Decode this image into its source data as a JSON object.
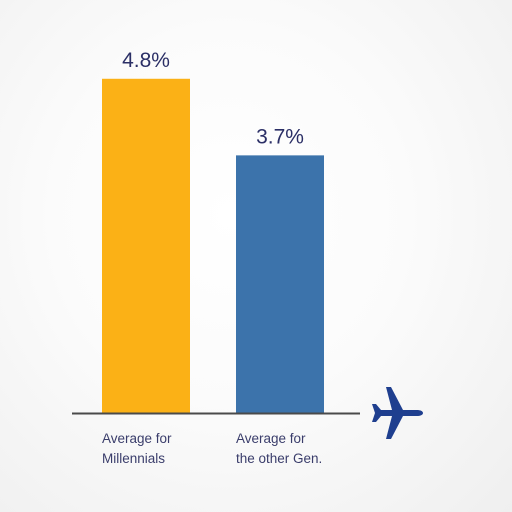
{
  "chart_data": {
    "type": "bar",
    "categories": [
      [
        "Average for",
        "Millennials"
      ],
      [
        "Average for",
        "the other Gen."
      ]
    ],
    "values": [
      4.8,
      3.7
    ],
    "value_labels": [
      "4.8%",
      "3.7%"
    ],
    "colors": [
      "#fbb116",
      "#3c73ab"
    ],
    "ylim": [
      0,
      5.4
    ],
    "title": "",
    "xlabel": "",
    "ylabel": "",
    "grid": false,
    "legend": "none"
  },
  "decoration": {
    "axis_color": "#4a4a4a",
    "icon": "airplane-icon",
    "icon_color": "#1f3f8f"
  }
}
